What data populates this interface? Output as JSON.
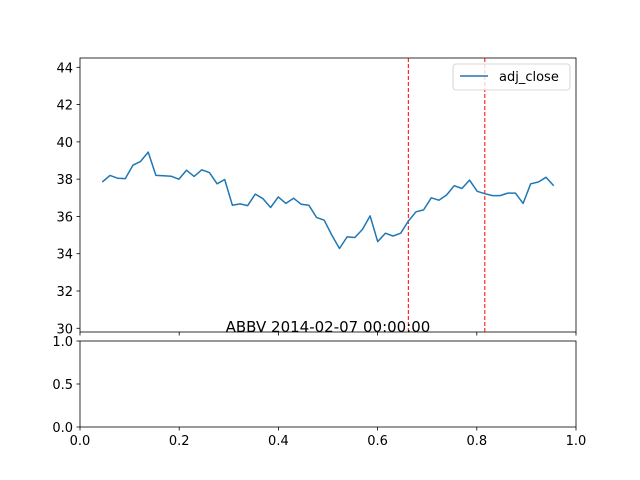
{
  "chart_data": [
    {
      "type": "line",
      "title": "ABBV 2014-02-07 00:00:00",
      "xlabel": "",
      "ylabel": "",
      "ylim": [
        29.8,
        44.5
      ],
      "yticks": [
        30,
        32,
        34,
        36,
        38,
        40,
        42,
        44
      ],
      "ytick_labels": [
        "30",
        "32",
        "34",
        "36",
        "38",
        "40",
        "42",
        "44"
      ],
      "xticks_shown_labels": false,
      "legend_position": "top-right",
      "series": [
        {
          "name": "adj_close",
          "color": "#1f77b4",
          "values": [
            37.85,
            38.2,
            38.05,
            38.03,
            38.75,
            38.95,
            39.45,
            38.2,
            38.18,
            38.16,
            38.0,
            38.48,
            38.15,
            38.5,
            38.35,
            37.75,
            37.98,
            36.6,
            36.67,
            36.58,
            37.2,
            36.95,
            36.48,
            37.05,
            36.7,
            36.98,
            36.65,
            36.6,
            35.95,
            35.8,
            35.0,
            34.28,
            34.9,
            34.87,
            35.3,
            36.03,
            34.65,
            35.1,
            34.95,
            35.1,
            35.75,
            36.25,
            36.35,
            37.0,
            36.87,
            37.15,
            37.65,
            37.5,
            37.95,
            37.35,
            37.22,
            37.12,
            37.12,
            37.25,
            37.25,
            36.7,
            37.75,
            37.85,
            38.1,
            37.65
          ]
        }
      ],
      "vlines": [
        {
          "index": 40,
          "color": "#ff0000",
          "style": "dashed"
        },
        {
          "index": 50,
          "color": "#ff0000",
          "style": "dashed"
        }
      ]
    },
    {
      "type": "line",
      "title": "",
      "xlabel": "",
      "ylabel": "",
      "xlim": [
        0,
        1
      ],
      "ylim": [
        0,
        1
      ],
      "xticks": [
        0.0,
        0.2,
        0.4,
        0.6,
        0.8,
        1.0
      ],
      "xtick_labels": [
        "0.0",
        "0.2",
        "0.4",
        "0.6",
        "0.8",
        "1.0"
      ],
      "yticks": [
        0.0,
        0.5,
        1.0
      ],
      "ytick_labels": [
        "0.0",
        "0.5",
        "1.0"
      ],
      "series": []
    }
  ]
}
